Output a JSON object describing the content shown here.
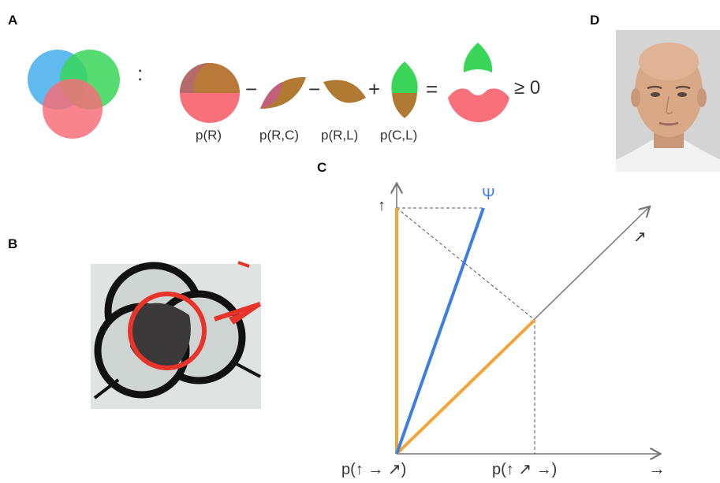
{
  "panels": {
    "a": {
      "letter": "A",
      "colon": ":",
      "minus1": "−",
      "minus2": "−",
      "plus": "+",
      "equals": "=",
      "geq": "≥ 0",
      "labels": [
        "p(R)",
        "p(R,C)",
        "p(R,L)",
        "p(C,L)"
      ]
    },
    "b": {
      "letter": "B"
    },
    "c": {
      "letter": "C",
      "psi": "Ψ",
      "axis_up": "↑",
      "axis_right": "→",
      "axis_diag": "↗",
      "label_left": "p(↑ → ↗)",
      "label_right": "p(↑ ↗ →)"
    },
    "d": {
      "letter": "D"
    }
  },
  "colors": {
    "blue": "#4fb3ee",
    "green": "#39d659",
    "red": "#f7707a",
    "brown": "#b07a32",
    "orange": "#f5a43a",
    "psi_blue": "#3d7fe0"
  },
  "icons": [
    "venn-diagram",
    "face-photo"
  ]
}
